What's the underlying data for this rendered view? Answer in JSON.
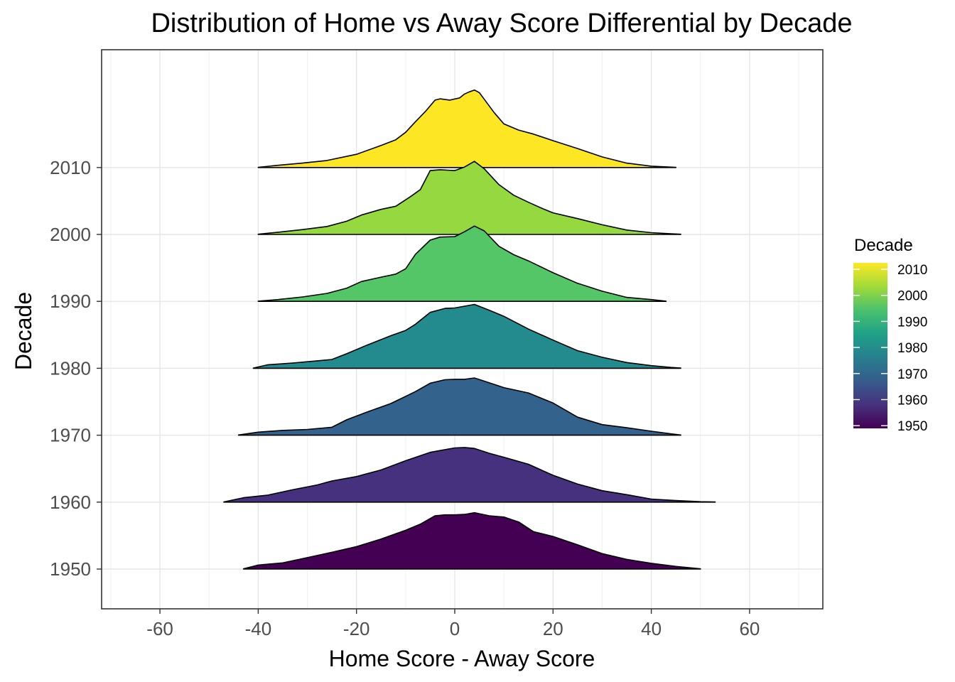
{
  "chart_data": {
    "type": "ridgeline",
    "title": "Distribution of Home vs Away Score Differential by Decade",
    "xlabel": "Home Score - Away Score",
    "ylabel": "Decade",
    "xlim": [
      -71,
      76
    ],
    "x_ticks": [
      -60,
      -40,
      -20,
      0,
      20,
      40,
      60
    ],
    "x_tick_labels": [
      "-60",
      "-40",
      "-20",
      "0",
      "20",
      "40",
      "60"
    ],
    "grid": true,
    "legend": {
      "title": "Decade",
      "position": "right",
      "type": "colorbar",
      "labels": [
        "2010",
        "2000",
        "1990",
        "1980",
        "1970",
        "1960",
        "1950"
      ],
      "colors_top_to_bottom": [
        "#FDE725",
        "#A0DA39",
        "#4AC16D",
        "#1FA187",
        "#277F8E",
        "#365C8D",
        "#46327E",
        "#440154"
      ]
    },
    "series": [
      {
        "name": "1950",
        "color": "#440154",
        "x": [
          -43,
          -40,
          -35,
          -30,
          -25,
          -20,
          -15,
          -10,
          -7,
          -4,
          -2,
          0,
          2,
          4,
          7,
          10,
          13,
          16,
          20,
          25,
          30,
          35,
          40,
          45,
          50
        ],
        "density": [
          0.005,
          0.09,
          0.14,
          0.26,
          0.38,
          0.51,
          0.68,
          0.88,
          1.02,
          1.21,
          1.23,
          1.23,
          1.24,
          1.28,
          1.21,
          1.18,
          1.07,
          0.85,
          0.74,
          0.55,
          0.35,
          0.22,
          0.13,
          0.06,
          0.005
        ]
      },
      {
        "name": "1960",
        "color": "#46317E",
        "x": [
          -47,
          -43,
          -38,
          -33,
          -28,
          -25,
          -20,
          -15,
          -10,
          -5,
          0,
          2,
          4,
          7,
          10,
          15,
          20,
          25,
          30,
          35,
          40,
          45,
          50,
          53
        ],
        "density": [
          0.005,
          0.1,
          0.16,
          0.28,
          0.39,
          0.48,
          0.58,
          0.73,
          0.94,
          1.13,
          1.23,
          1.24,
          1.22,
          1.11,
          1.02,
          0.86,
          0.61,
          0.41,
          0.26,
          0.17,
          0.07,
          0.035,
          0.01,
          0.005
        ]
      },
      {
        "name": "1970",
        "color": "#33638D",
        "x": [
          -44,
          -40,
          -35,
          -30,
          -25,
          -22,
          -18,
          -13,
          -8,
          -5,
          -2,
          0,
          2,
          4,
          7,
          10,
          15,
          20,
          25,
          30,
          35,
          40,
          44,
          46
        ],
        "density": [
          0.005,
          0.07,
          0.11,
          0.13,
          0.18,
          0.35,
          0.52,
          0.72,
          0.99,
          1.18,
          1.26,
          1.27,
          1.27,
          1.3,
          1.19,
          1.08,
          0.96,
          0.73,
          0.41,
          0.24,
          0.17,
          0.09,
          0.03,
          0.005
        ]
      },
      {
        "name": "1980",
        "color": "#238A8D",
        "x": [
          -41,
          -38,
          -33,
          -28,
          -25,
          -22,
          -18,
          -13,
          -10,
          -8,
          -5,
          -2,
          0,
          2,
          4,
          7,
          10,
          15,
          20,
          25,
          30,
          35,
          40,
          44,
          46
        ],
        "density": [
          0.005,
          0.08,
          0.12,
          0.17,
          0.2,
          0.33,
          0.52,
          0.74,
          0.86,
          1.0,
          1.27,
          1.36,
          1.37,
          1.41,
          1.45,
          1.32,
          1.18,
          0.89,
          0.64,
          0.4,
          0.25,
          0.13,
          0.06,
          0.02,
          0.005
        ]
      },
      {
        "name": "1990",
        "color": "#55C667",
        "x": [
          -40,
          -36,
          -31,
          -26,
          -22,
          -19,
          -15,
          -12,
          -10,
          -8,
          -5,
          -3,
          0,
          2,
          4,
          6,
          9,
          12,
          15,
          20,
          25,
          30,
          35,
          40,
          43
        ],
        "density": [
          0.005,
          0.04,
          0.1,
          0.18,
          0.3,
          0.45,
          0.55,
          0.62,
          0.74,
          1.07,
          1.39,
          1.46,
          1.47,
          1.58,
          1.71,
          1.6,
          1.25,
          1.06,
          0.92,
          0.65,
          0.41,
          0.23,
          0.09,
          0.04,
          0.005
        ]
      },
      {
        "name": "2000",
        "color": "#95D840",
        "x": [
          -40,
          -36,
          -31,
          -26,
          -22,
          -19,
          -15,
          -12,
          -9,
          -7,
          -5,
          -3,
          0,
          2,
          4,
          6,
          9,
          12,
          15,
          18,
          20,
          25,
          30,
          35,
          40,
          44,
          46
        ],
        "density": [
          0.005,
          0.05,
          0.11,
          0.18,
          0.3,
          0.44,
          0.57,
          0.64,
          0.86,
          1.02,
          1.45,
          1.47,
          1.45,
          1.53,
          1.66,
          1.49,
          1.13,
          0.89,
          0.73,
          0.58,
          0.49,
          0.36,
          0.22,
          0.1,
          0.04,
          0.015,
          0.005
        ]
      },
      {
        "name": "2010",
        "color": "#FDE725",
        "x": [
          -40,
          -36,
          -31,
          -26,
          -20,
          -15,
          -12,
          -10,
          -8,
          -6,
          -4,
          -3,
          -1,
          1,
          2,
          3,
          4,
          5,
          6,
          8,
          10,
          13,
          16,
          20,
          25,
          30,
          35,
          40,
          45
        ],
        "density": [
          0.005,
          0.05,
          0.1,
          0.16,
          0.3,
          0.5,
          0.63,
          0.8,
          1.04,
          1.27,
          1.53,
          1.56,
          1.53,
          1.58,
          1.67,
          1.72,
          1.76,
          1.7,
          1.55,
          1.25,
          0.99,
          0.85,
          0.76,
          0.61,
          0.43,
          0.24,
          0.1,
          0.03,
          0.005
        ]
      }
    ]
  }
}
